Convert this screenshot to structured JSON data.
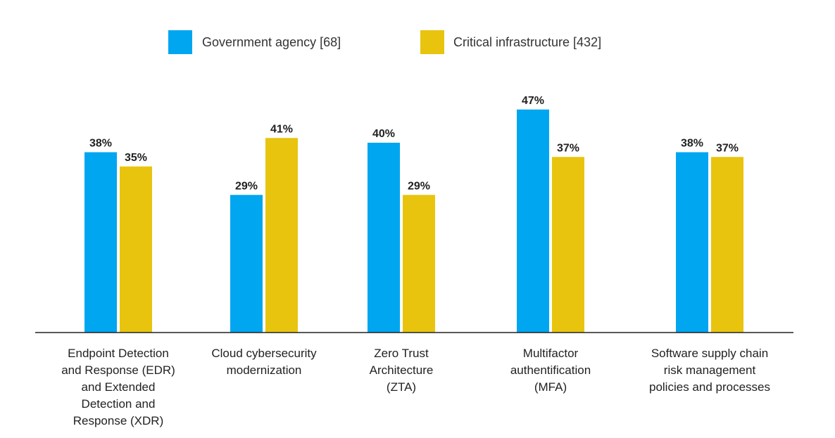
{
  "chart_data": {
    "type": "bar",
    "title": "",
    "xlabel": "",
    "ylabel": "",
    "ylim": [
      0,
      50
    ],
    "grid": false,
    "legend_position": "top-center",
    "categories": [
      [
        "Endpoint Detection",
        "and Response (EDR)",
        "and Extended",
        "Detection and",
        "Response (XDR)"
      ],
      [
        "Cloud cybersecurity",
        "modernization"
      ],
      [
        "Zero Trust",
        "Architecture",
        "(ZTA)"
      ],
      [
        "Multifactor",
        "authentification",
        "(MFA)"
      ],
      [
        "Software supply chain",
        "risk management",
        "policies and processes"
      ]
    ],
    "series": [
      {
        "name": "Government agency [68]",
        "color": "#00A6F0",
        "values": [
          38,
          29,
          40,
          47,
          38
        ],
        "labels": [
          "38%",
          "29%",
          "40%",
          "47%",
          "38%"
        ]
      },
      {
        "name": "Critical infrastructure [432]",
        "color": "#E8C40E",
        "values": [
          35,
          41,
          29,
          37,
          37
        ],
        "labels": [
          "35%",
          "41%",
          "29%",
          "37%",
          "37%"
        ]
      }
    ]
  }
}
